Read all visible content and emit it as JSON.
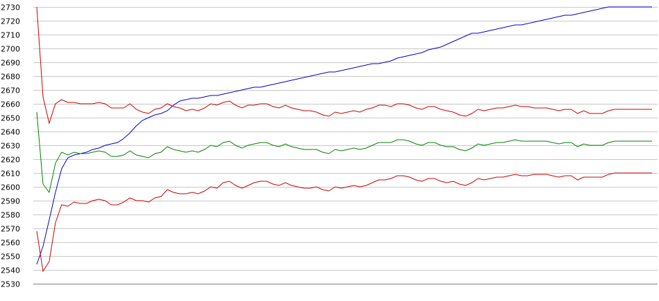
{
  "chart_data": {
    "type": "line",
    "title": "",
    "xlabel": "",
    "ylabel": "",
    "ylim": [
      2530,
      2730
    ],
    "yticks": [
      2730,
      2720,
      2710,
      2700,
      2690,
      2680,
      2670,
      2660,
      2650,
      2640,
      2630,
      2620,
      2610,
      2600,
      2590,
      2580,
      2570,
      2560,
      2550,
      2540,
      2530
    ],
    "grid": true,
    "legend": "none",
    "x": [
      1,
      2,
      3,
      4,
      5,
      6,
      7,
      8,
      9,
      10,
      11,
      12,
      13,
      14,
      15,
      16,
      17,
      18,
      19,
      20,
      21,
      22,
      23,
      24,
      25,
      26,
      27,
      28,
      29,
      30,
      31,
      32,
      33,
      34,
      35,
      36,
      37,
      38,
      39,
      40,
      41,
      42,
      43,
      44,
      45,
      46,
      47,
      48,
      49,
      50,
      51,
      52,
      53,
      54,
      55,
      56,
      57,
      58,
      59,
      60,
      61,
      62,
      63,
      64,
      65,
      66,
      67,
      68,
      69,
      70,
      71,
      72,
      73,
      74,
      75,
      76,
      77,
      78,
      79,
      80,
      81,
      82,
      83,
      84,
      85,
      86,
      87,
      88,
      89,
      90,
      91,
      92,
      93,
      94,
      95,
      96,
      97,
      98,
      99,
      100
    ],
    "series": [
      {
        "color": "#0000cc",
        "values": [
          2544,
          2557,
          2576,
          2596,
          2613,
          2621,
          2623,
          2624,
          2625,
          2627,
          2628,
          2630,
          2631,
          2632,
          2635,
          2639,
          2644,
          2648,
          2650,
          2652,
          2653,
          2655,
          2659,
          2662,
          2663,
          2664,
          2664,
          2665,
          2666,
          2666,
          2667,
          2668,
          2669,
          2670,
          2671,
          2672,
          2672,
          2673,
          2674,
          2675,
          2676,
          2677,
          2678,
          2679,
          2680,
          2681,
          2682,
          2683,
          2683,
          2684,
          2685,
          2686,
          2687,
          2688,
          2689,
          2689,
          2690,
          2691,
          2693,
          2694,
          2695,
          2696,
          2697,
          2699,
          2700,
          2701,
          2703,
          2705,
          2707,
          2709,
          2711,
          2711,
          2712,
          2713,
          2714,
          2715,
          2716,
          2717,
          2717,
          2718,
          2719,
          2720,
          2721,
          2722,
          2723,
          2724,
          2724,
          2725,
          2726,
          2727,
          2728,
          2729,
          2730,
          2730,
          2730,
          2730,
          2730,
          2730,
          2730,
          2730
        ]
      },
      {
        "color": "#cc0000",
        "values": [
          2730,
          2665,
          2646,
          2660,
          2663,
          2661,
          2661,
          2660,
          2660,
          2660,
          2661,
          2660,
          2657,
          2657,
          2657,
          2660,
          2656,
          2654,
          2653,
          2656,
          2657,
          2660,
          2658,
          2657,
          2655,
          2656,
          2655,
          2657,
          2660,
          2659,
          2661,
          2662,
          2659,
          2657,
          2659,
          2659,
          2660,
          2660,
          2658,
          2657,
          2659,
          2657,
          2656,
          2655,
          2655,
          2654,
          2652,
          2651,
          2654,
          2653,
          2654,
          2655,
          2654,
          2656,
          2657,
          2659,
          2659,
          2658,
          2660,
          2660,
          2659,
          2657,
          2656,
          2658,
          2658,
          2656,
          2655,
          2654,
          2652,
          2651,
          2653,
          2656,
          2655,
          2656,
          2657,
          2657,
          2658,
          2659,
          2658,
          2658,
          2657,
          2657,
          2657,
          2656,
          2655,
          2656,
          2656,
          2653,
          2655,
          2653,
          2653,
          2653,
          2655,
          2656,
          2656,
          2656,
          2656,
          2656,
          2656,
          2656
        ]
      },
      {
        "color": "#008000",
        "values": [
          2654,
          2602,
          2596,
          2617,
          2625,
          2623,
          2625,
          2624,
          2624,
          2625,
          2626,
          2625,
          2622,
          2622,
          2623,
          2626,
          2623,
          2622,
          2621,
          2624,
          2625,
          2629,
          2627,
          2626,
          2625,
          2626,
          2625,
          2627,
          2630,
          2629,
          2632,
          2633,
          2630,
          2628,
          2630,
          2631,
          2632,
          2632,
          2630,
          2629,
          2631,
          2629,
          2628,
          2627,
          2627,
          2627,
          2625,
          2624,
          2627,
          2626,
          2627,
          2628,
          2627,
          2628,
          2630,
          2632,
          2632,
          2632,
          2634,
          2634,
          2633,
          2631,
          2630,
          2632,
          2632,
          2630,
          2629,
          2629,
          2627,
          2626,
          2628,
          2631,
          2630,
          2631,
          2632,
          2632,
          2633,
          2634,
          2633,
          2633,
          2633,
          2633,
          2633,
          2632,
          2631,
          2632,
          2632,
          2629,
          2631,
          2630,
          2630,
          2630,
          2632,
          2633,
          2633,
          2633,
          2633,
          2633,
          2633,
          2633
        ]
      },
      {
        "color": "#cc0000",
        "values": [
          2568,
          2539,
          2546,
          2574,
          2587,
          2586,
          2589,
          2588,
          2588,
          2590,
          2591,
          2590,
          2587,
          2587,
          2589,
          2592,
          2590,
          2590,
          2589,
          2592,
          2593,
          2598,
          2596,
          2595,
          2595,
          2596,
          2595,
          2597,
          2600,
          2599,
          2603,
          2604,
          2601,
          2599,
          2601,
          2603,
          2604,
          2604,
          2602,
          2601,
          2603,
          2601,
          2600,
          2599,
          2599,
          2600,
          2598,
          2597,
          2600,
          2599,
          2600,
          2601,
          2600,
          2601,
          2603,
          2605,
          2605,
          2606,
          2608,
          2608,
          2607,
          2605,
          2604,
          2606,
          2606,
          2604,
          2603,
          2604,
          2602,
          2601,
          2603,
          2606,
          2605,
          2606,
          2607,
          2607,
          2608,
          2609,
          2608,
          2608,
          2609,
          2609,
          2609,
          2608,
          2607,
          2608,
          2608,
          2605,
          2607,
          2607,
          2607,
          2607,
          2609,
          2610,
          2610,
          2610,
          2610,
          2610,
          2610,
          2610
        ]
      }
    ]
  }
}
